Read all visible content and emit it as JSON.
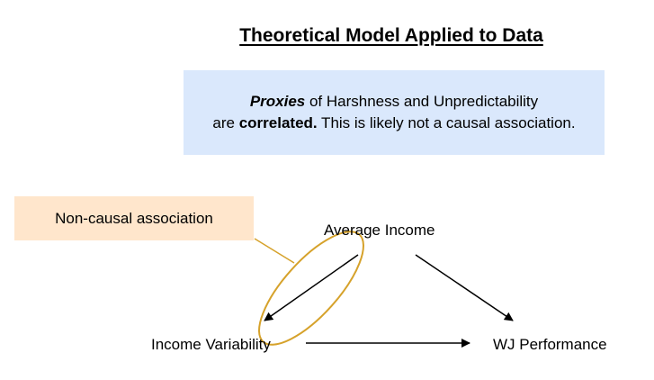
{
  "title": "Theoretical Model Applied to Data",
  "note": {
    "line1_part1": "Proxies",
    "line1_part2": " of Harshness and Unpredictability",
    "line2_part1": "are ",
    "line2_part2": "correlated.",
    "line2_part3": " This is likely not a causal association."
  },
  "annotation_label": "Non-causal association",
  "nodes": {
    "average_income": "Average Income",
    "income_variability": "Income Variability",
    "wj_performance": "WJ Performance"
  },
  "colors": {
    "note_fill": "#dae8fc",
    "annotation_fill": "#ffe6cc",
    "highlight_stroke": "#d6a22b",
    "arrow": "#000000"
  }
}
